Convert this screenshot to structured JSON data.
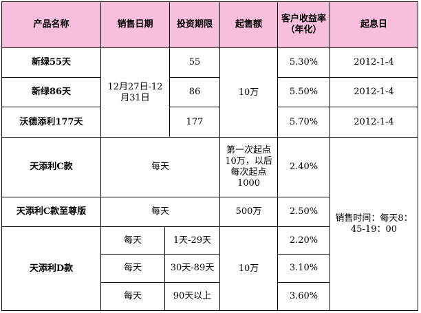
{
  "table": {
    "header": [
      "产品名称",
      "销售日期",
      "投资期限",
      "起售额",
      "客户收益率（年化）",
      "起息日"
    ],
    "group1": {
      "sale_date": "12月27日-12月31日",
      "amount": "10万",
      "rows": [
        {
          "product": "新绿55天",
          "term": "55",
          "rate": "5.30%",
          "start": "2012-1-4"
        },
        {
          "product": "新绿86天",
          "term": "86",
          "rate": "5.50%",
          "start": "2012-1-4"
        },
        {
          "product": "沃德添利177天",
          "term": "177",
          "rate": "5.70%",
          "start": "2012-1-4"
        }
      ]
    },
    "c": {
      "product": "天添利C款",
      "sale": "每天",
      "amount": "第一次起点10万，以后每次起点1000",
      "rate": "2.40%"
    },
    "premium": {
      "product": "天添利C款至尊版",
      "sale": "每天",
      "amount": "500万",
      "rate": "2.50%"
    },
    "note": "销售时间：每天8：45-19：00",
    "d": {
      "product": "天添利D款",
      "amount": "10万",
      "rows": [
        {
          "sale": "每天",
          "term": "1天-29天",
          "rate": "2.20%"
        },
        {
          "sale": "每天",
          "term": "30天-89天",
          "rate": "3.10%"
        },
        {
          "sale": "每天",
          "term": "90天以上",
          "rate": "3.60%"
        }
      ]
    }
  }
}
